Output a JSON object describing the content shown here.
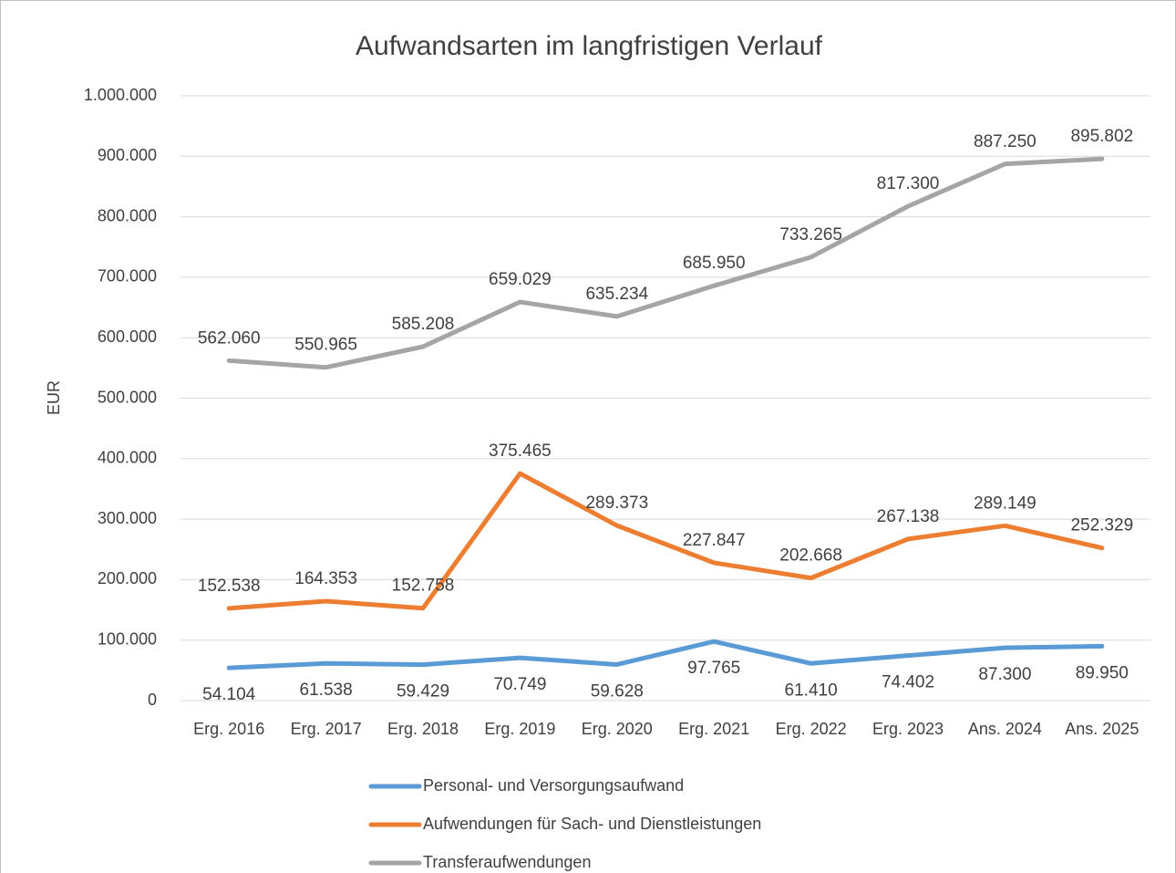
{
  "chart_data": {
    "type": "line",
    "title": "Aufwandsarten im langfristigen Verlauf",
    "y_label": "EUR",
    "categories": [
      "Erg. 2016",
      "Erg. 2017",
      "Erg. 2018",
      "Erg. 2019",
      "Erg. 2020",
      "Erg. 2021",
      "Erg. 2022",
      "Erg. 2023",
      "Ans. 2024",
      "Ans. 2025"
    ],
    "ylim": [
      0,
      1000000
    ],
    "yticks": [
      0,
      {
        "value": 100000,
        "label": "100.000"
      },
      {
        "value": 200000,
        "label": "200.000"
      },
      {
        "value": 300000,
        "label": "300.000"
      },
      {
        "value": 400000,
        "label": "400.000"
      },
      {
        "value": 500000,
        "label": "500.000"
      },
      {
        "value": 600000,
        "label": "600.000"
      },
      {
        "value": 700000,
        "label": "700.000"
      },
      {
        "value": 800000,
        "label": "800.000"
      },
      {
        "value": 900000,
        "label": "900.000"
      },
      {
        "value": 1000000,
        "label": "1.000.000"
      }
    ],
    "grid": true,
    "legend": "bottom",
    "series": [
      {
        "name": "Personal- und Versorgungsaufwand",
        "color": "#5b9bd5",
        "label_position": "below",
        "values": [
          54104,
          61538,
          59429,
          70749,
          59628,
          97765,
          61410,
          74402,
          87300,
          89950
        ],
        "value_labels": [
          "54.104",
          "61.538",
          "59.429",
          "70.749",
          "59.628",
          "97.765",
          "61.410",
          "74.402",
          "87.300",
          "89.950"
        ]
      },
      {
        "name": "Aufwendungen für Sach- und Dienstleistungen",
        "color": "#ed7d31",
        "label_position": "above",
        "values": [
          152538,
          164353,
          152758,
          375465,
          289373,
          227847,
          202668,
          267138,
          289149,
          252329
        ],
        "value_labels": [
          "152.538",
          "164.353",
          "152.758",
          "375.465",
          "289.373",
          "227.847",
          "202.668",
          "267.138",
          "289.149",
          "252.329"
        ]
      },
      {
        "name": "Transferaufwendungen",
        "color": "#a5a5a5",
        "label_position": "above",
        "values": [
          562060,
          550965,
          585208,
          659029,
          635234,
          685950,
          733265,
          817300,
          887250,
          895802
        ],
        "value_labels": [
          "562.060",
          "550.965",
          "585.208",
          "659.029",
          "635.234",
          "685.950",
          "733.265",
          "817.300",
          "887.250",
          "895.802"
        ]
      }
    ]
  }
}
